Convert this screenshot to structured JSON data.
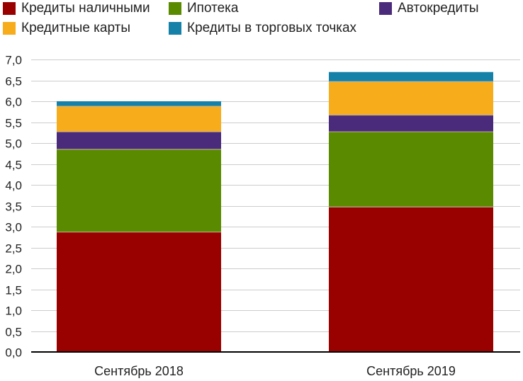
{
  "chart_data": {
    "type": "bar",
    "stacked": true,
    "title": "",
    "xlabel": "",
    "ylabel": "",
    "categories": [
      "Сентябрь 2018",
      "Сентябрь 2019"
    ],
    "ylim": [
      0,
      7.0
    ],
    "y_ticks": [
      "0,0",
      "0,5",
      "1,0",
      "1,5",
      "2,0",
      "2,5",
      "3,0",
      "3,5",
      "4,0",
      "4,5",
      "5,0",
      "5,5",
      "6,0",
      "6,5",
      "7,0"
    ],
    "grid": true,
    "legend_position": "top",
    "series": [
      {
        "name": "Кредиты наличными",
        "color": "#990000",
        "values": [
          2.87,
          3.47
        ]
      },
      {
        "name": "Ипотека",
        "color": "#5a8a00",
        "values": [
          1.98,
          1.8
        ]
      },
      {
        "name": "Автокредиты",
        "color": "#4a2a7a",
        "values": [
          0.42,
          0.4
        ]
      },
      {
        "name": "Кредитные карты",
        "color": "#f7ac1c",
        "values": [
          0.61,
          0.8
        ]
      },
      {
        "name": "Кредиты в торговых точках",
        "color": "#1581a8",
        "values": [
          0.12,
          0.23
        ]
      }
    ]
  }
}
